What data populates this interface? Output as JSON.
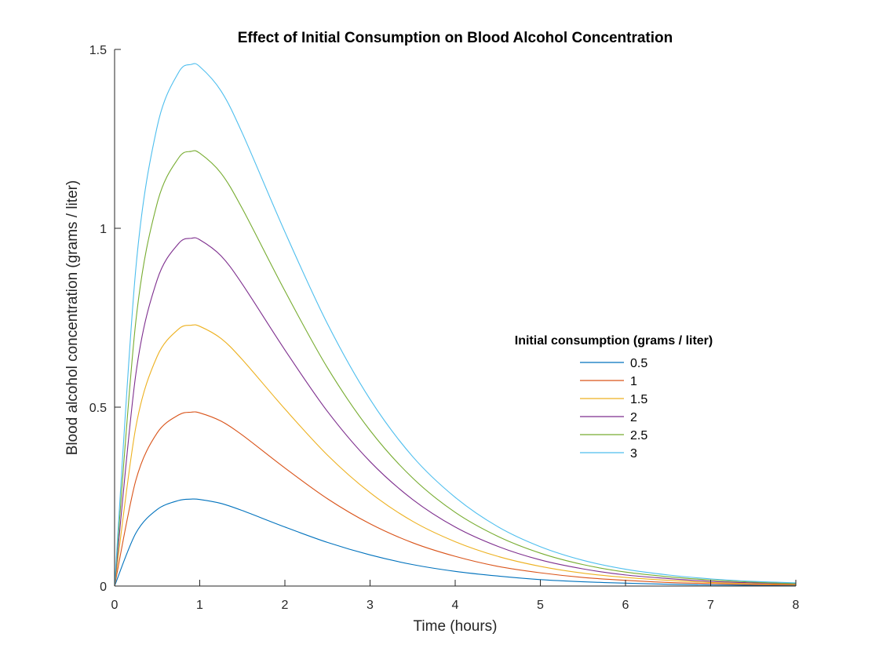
{
  "chart_data": {
    "type": "line",
    "title": "Effect of Initial Consumption on Blood Alcohol Concentration",
    "xlabel": "Time (hours)",
    "ylabel": "Blood alcohol concentration (grams / liter)",
    "xlim": [
      0,
      8
    ],
    "ylim": [
      0,
      1.5
    ],
    "xticks": [
      0,
      1,
      2,
      3,
      4,
      5,
      6,
      7,
      8
    ],
    "xtick_labels": [
      "0",
      "1",
      "2",
      "3",
      "4",
      "5",
      "6",
      "7",
      "8"
    ],
    "yticks": [
      0,
      0.5,
      1,
      1.5
    ],
    "ytick_labels": [
      "0",
      "0.5",
      "1",
      "1.5"
    ],
    "grid": false,
    "legend": {
      "title": "Initial consumption (grams / liter)",
      "placement": "right-middle",
      "entries": [
        "0.5",
        "1",
        "1.5",
        "2",
        "2.5",
        "3"
      ]
    },
    "x": [
      0,
      0.25,
      0.5,
      0.75,
      0.9,
      1.0,
      1.25,
      1.5,
      2.0,
      2.5,
      3.0,
      3.5,
      4.0,
      4.5,
      5.0,
      5.5,
      6.0,
      6.5,
      7.0,
      7.5,
      8.0
    ],
    "series": [
      {
        "name": "0.5",
        "color": "#0072BD",
        "values": [
          0,
          0.148,
          0.214,
          0.239,
          0.243,
          0.242,
          0.231,
          0.211,
          0.165,
          0.122,
          0.087,
          0.06,
          0.041,
          0.028,
          0.018,
          0.012,
          0.008,
          0.005,
          0.003,
          0.002,
          0.001
        ]
      },
      {
        "name": "1",
        "color": "#D95319",
        "values": [
          0,
          0.296,
          0.428,
          0.478,
          0.486,
          0.484,
          0.461,
          0.422,
          0.33,
          0.244,
          0.174,
          0.121,
          0.083,
          0.055,
          0.037,
          0.024,
          0.016,
          0.01,
          0.007,
          0.004,
          0.003
        ]
      },
      {
        "name": "1.5",
        "color": "#EDB120",
        "values": [
          0,
          0.445,
          0.642,
          0.718,
          0.729,
          0.726,
          0.692,
          0.633,
          0.495,
          0.366,
          0.261,
          0.181,
          0.124,
          0.083,
          0.055,
          0.036,
          0.024,
          0.016,
          0.01,
          0.007,
          0.004
        ]
      },
      {
        "name": "2",
        "color": "#7E2F8E",
        "values": [
          0,
          0.593,
          0.856,
          0.957,
          0.972,
          0.968,
          0.923,
          0.844,
          0.66,
          0.488,
          0.348,
          0.242,
          0.165,
          0.111,
          0.073,
          0.048,
          0.031,
          0.021,
          0.013,
          0.009,
          0.006
        ]
      },
      {
        "name": "2.5",
        "color": "#77AC30",
        "values": [
          0,
          0.741,
          1.07,
          1.196,
          1.215,
          1.21,
          1.154,
          1.055,
          0.825,
          0.61,
          0.435,
          0.302,
          0.206,
          0.139,
          0.092,
          0.06,
          0.039,
          0.026,
          0.017,
          0.011,
          0.007
        ]
      },
      {
        "name": "3",
        "color": "#4DBEEE",
        "values": [
          0,
          0.889,
          1.284,
          1.435,
          1.458,
          1.452,
          1.384,
          1.266,
          0.99,
          0.733,
          0.522,
          0.362,
          0.248,
          0.166,
          0.11,
          0.072,
          0.047,
          0.031,
          0.02,
          0.013,
          0.009
        ]
      }
    ]
  }
}
